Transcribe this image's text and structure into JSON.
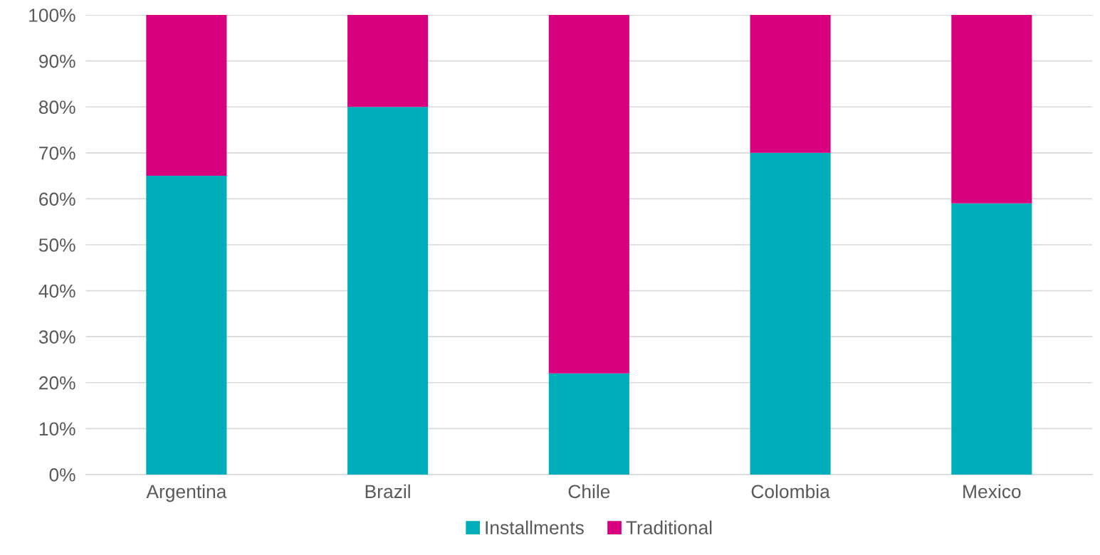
{
  "chart_data": {
    "type": "bar",
    "stacked": true,
    "categories": [
      "Argentina",
      "Brazil",
      "Chile",
      "Colombia",
      "Mexico"
    ],
    "series": [
      {
        "name": "Installments",
        "color": "#00adbb",
        "values": [
          65,
          80,
          22,
          70,
          59
        ]
      },
      {
        "name": "Traditional",
        "color": "#d9007f",
        "values": [
          35,
          20,
          78,
          30,
          41
        ]
      }
    ],
    "ylim": [
      0,
      100
    ],
    "yticks": [
      {
        "value": 0,
        "label": "0%"
      },
      {
        "value": 10,
        "label": "10%"
      },
      {
        "value": 20,
        "label": "20%"
      },
      {
        "value": 30,
        "label": "30%"
      },
      {
        "value": 40,
        "label": "40%"
      },
      {
        "value": 50,
        "label": "50%"
      },
      {
        "value": 60,
        "label": "60%"
      },
      {
        "value": 70,
        "label": "70%"
      },
      {
        "value": 80,
        "label": "80%"
      },
      {
        "value": 90,
        "label": "90%"
      },
      {
        "value": 100,
        "label": "100%"
      }
    ],
    "grid": "y",
    "legend": "bottom"
  }
}
